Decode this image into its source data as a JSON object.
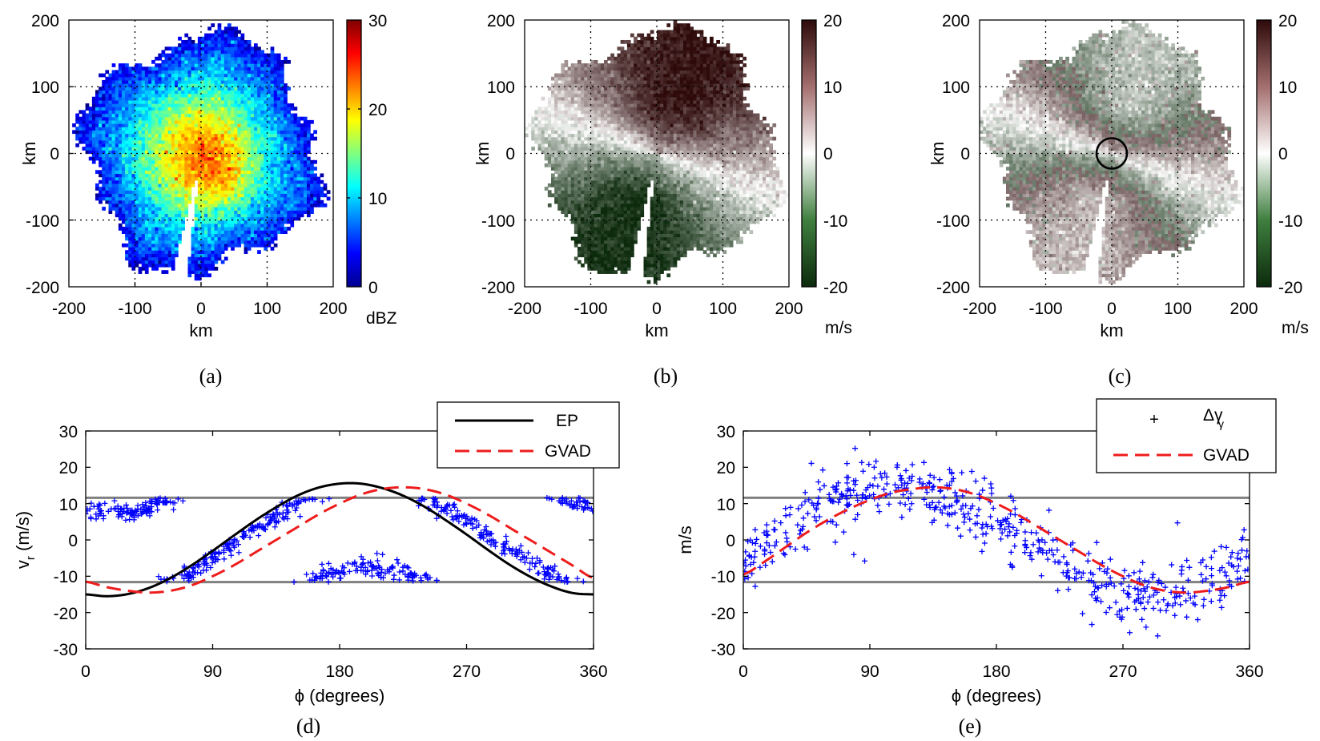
{
  "chart_data": [
    {
      "panel": "a",
      "type": "heatmap",
      "caption": "(a)",
      "xlabel": "km",
      "ylabel": "km",
      "xlim": [
        -200,
        200
      ],
      "ylim": [
        -200,
        200
      ],
      "xticks": [
        "-200",
        "-100",
        "0",
        "100",
        "200"
      ],
      "yticks": [
        "200",
        "100",
        "0",
        "-100",
        "-200"
      ],
      "colorbar": {
        "min": 0,
        "max": 30,
        "ticks": [
          "30",
          "20",
          "10",
          "0"
        ],
        "unit": "dBZ",
        "colormap": "jet"
      },
      "grid": true,
      "field": {
        "pattern": "reflectivity",
        "radius_km": 175,
        "background_value": 9,
        "peak_value": 25,
        "peak_center_km": [
          30,
          -45
        ],
        "peak_spread_km": 45,
        "inner_value": 22,
        "inner_radius_km": 90,
        "wedge_azimuth_deg": 190,
        "wedge_width_deg": 7
      }
    },
    {
      "panel": "b",
      "type": "heatmap",
      "caption": "(b)",
      "xlabel": "km",
      "ylabel": "km",
      "xlim": [
        -200,
        200
      ],
      "ylim": [
        -200,
        200
      ],
      "xticks": [
        "-200",
        "-100",
        "0",
        "100",
        "200"
      ],
      "yticks": [
        "200",
        "100",
        "0",
        "-100",
        "-200"
      ],
      "colorbar": {
        "min": -20,
        "max": 20,
        "ticks": [
          "20",
          "10",
          "0",
          "-10",
          "-20"
        ],
        "unit": "m/s",
        "colormap": "green-white-brown"
      },
      "grid": true,
      "field": {
        "pattern": "radial-velocity",
        "radius_km": 180,
        "amplitude": 19,
        "zero_azimuth_deg": 110,
        "wedge_azimuth_deg": 190,
        "wedge_width_deg": 7
      }
    },
    {
      "panel": "c",
      "type": "heatmap",
      "caption": "(c)",
      "xlabel": "km",
      "ylabel": "km",
      "xlim": [
        -200,
        200
      ],
      "ylim": [
        -200,
        200
      ],
      "xticks": [
        "-200",
        "-100",
        "0",
        "100",
        "200"
      ],
      "yticks": [
        "200",
        "100",
        "0",
        "-100",
        "-200"
      ],
      "colorbar": {
        "min": -20,
        "max": 20,
        "ticks": [
          "20",
          "10",
          "0",
          "-10",
          "-20"
        ],
        "unit": "m/s",
        "colormap": "green-white-brown"
      },
      "grid": true,
      "field": {
        "pattern": "aliased-velocity",
        "radius_km": 180,
        "amplitude": 19,
        "nyquist": 11.6,
        "zero_azimuth_deg": 110,
        "wedge_azimuth_deg": 190,
        "wedge_width_deg": 7
      },
      "annotation": {
        "shape": "circle",
        "center_km": [
          0,
          0
        ],
        "radius_km": 22
      }
    },
    {
      "panel": "d",
      "type": "line",
      "caption": "(d)",
      "xlabel": "ϕ (degrees)",
      "ylabel": "v",
      "ylabel_sub": "r",
      "ylabel_unit": " (m/s)",
      "xlim": [
        0,
        360
      ],
      "ylim": [
        -30,
        30
      ],
      "xticks": [
        0,
        90,
        180,
        270,
        360
      ],
      "yticks": [
        30,
        20,
        10,
        0,
        -10,
        -20,
        -30
      ],
      "hlines": [
        11.6,
        -11.6
      ],
      "legend": {
        "placement": "top-right",
        "entries": [
          "EP",
          "GVAD"
        ]
      },
      "series": [
        {
          "name": "EP",
          "style": "solid-black",
          "x": [
            0,
            15,
            30,
            45,
            60,
            75,
            90,
            105,
            120,
            135,
            150,
            165,
            180,
            195,
            210,
            225,
            240,
            255,
            270,
            285,
            300,
            315,
            330,
            345,
            360
          ],
          "y": [
            -15.0,
            -15.5,
            -14.9,
            -13.2,
            -10.5,
            -7.0,
            -3.0,
            1.2,
            5.3,
            9.0,
            12.2,
            14.4,
            15.5,
            15.5,
            14.3,
            12.2,
            9.2,
            5.5,
            1.5,
            -2.7,
            -6.7,
            -10.1,
            -12.8,
            -14.6,
            -15.0
          ]
        },
        {
          "name": "GVAD",
          "style": "dashed-red",
          "x": [
            0,
            15,
            30,
            45,
            60,
            75,
            90,
            105,
            120,
            135,
            150,
            165,
            180,
            195,
            210,
            225,
            240,
            255,
            270,
            285,
            300,
            315,
            330,
            345,
            360
          ],
          "y": [
            -11.5,
            -13.0,
            -14.0,
            -14.5,
            -14.0,
            -12.5,
            -10.0,
            -7.0,
            -3.5,
            0.0,
            3.5,
            7.0,
            10.0,
            12.5,
            14.0,
            14.5,
            14.0,
            12.5,
            10.0,
            7.0,
            3.5,
            0.0,
            -3.5,
            -7.0,
            -10.5
          ]
        }
      ],
      "scatter_model": {
        "kind": "aliased-profile",
        "amplitude": 15.5,
        "phase_deg": 200,
        "nyquist": 11.6,
        "noise": 1.3,
        "points": 620,
        "color": "#0000ff",
        "marker": "+"
      }
    },
    {
      "panel": "e",
      "type": "line",
      "caption": "(e)",
      "xlabel": "ϕ (degrees)",
      "ylabel": "m/s",
      "xlim": [
        0,
        360
      ],
      "ylim": [
        -30,
        30
      ],
      "xticks": [
        0,
        90,
        180,
        270,
        360
      ],
      "yticks": [
        30,
        20,
        10,
        0,
        -10,
        -20,
        -30
      ],
      "hlines": [
        11.6,
        -11.6
      ],
      "legend": {
        "placement": "top-right",
        "entries": [
          "Δγ",
          "GVAD"
        ],
        "entry_subscripts": [
          "γ",
          ""
        ]
      },
      "series": [
        {
          "name": "GVAD",
          "style": "dashed-red",
          "x": [
            0,
            15,
            30,
            45,
            60,
            75,
            90,
            105,
            120,
            135,
            150,
            165,
            180,
            195,
            210,
            225,
            240,
            255,
            270,
            285,
            300,
            315,
            330,
            345,
            360
          ],
          "y": [
            -9.5,
            -6.0,
            -2.0,
            2.0,
            5.5,
            8.5,
            11.0,
            13.0,
            14.0,
            14.5,
            14.0,
            12.5,
            10.0,
            7.0,
            3.5,
            0.0,
            -3.5,
            -7.0,
            -10.0,
            -12.5,
            -14.0,
            -14.5,
            -14.0,
            -13.0,
            -11.5
          ]
        }
      ],
      "scatter_model": {
        "kind": "noisy-difference",
        "amplitude": 15.0,
        "phase_deg": 110,
        "noise": 4.5,
        "points": 560,
        "color": "#0000ff",
        "marker": "+"
      }
    }
  ]
}
